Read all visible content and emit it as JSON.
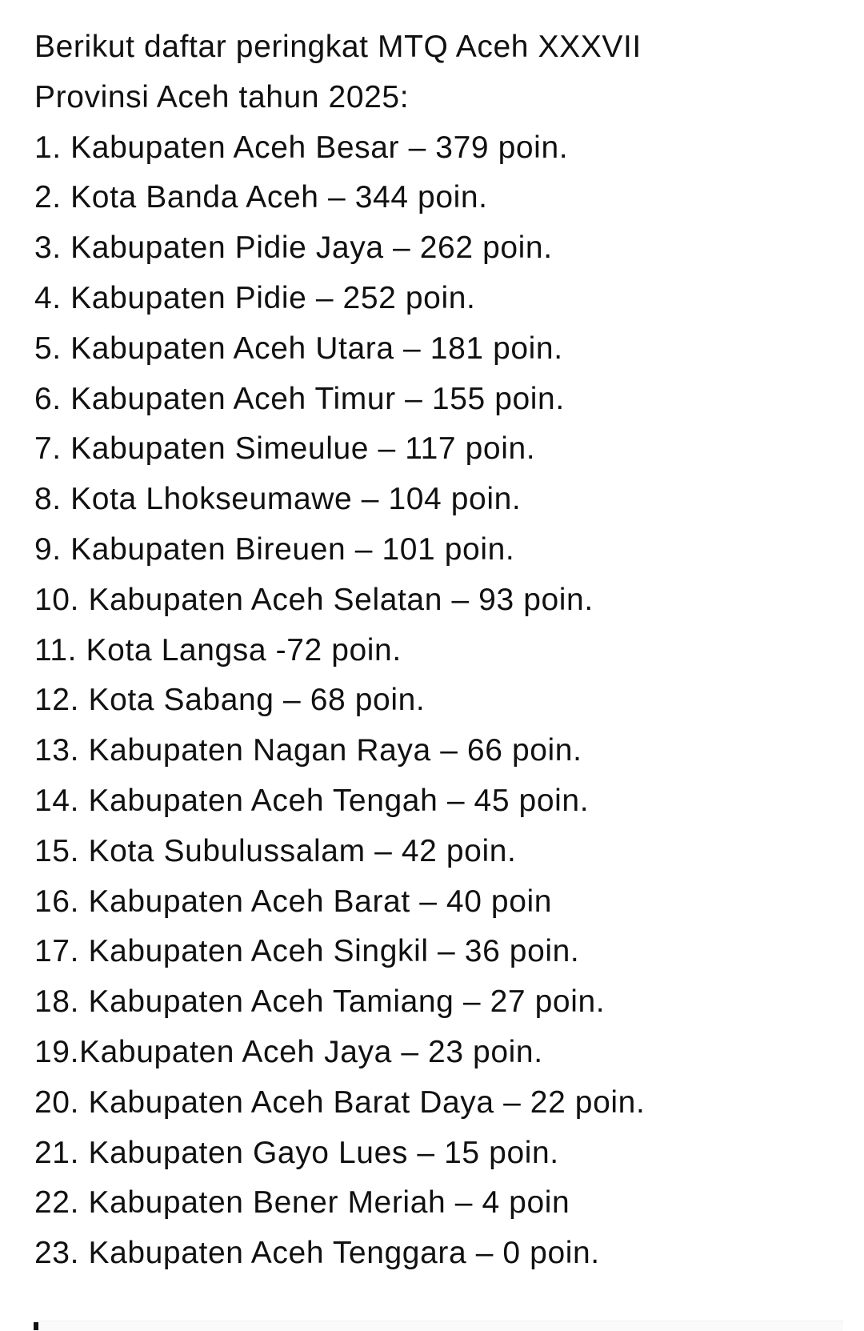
{
  "intro": [
    "Berikut daftar peringkat MTQ Aceh XXXVII",
    "Provinsi Aceh tahun 2025:"
  ],
  "rankings": [
    "1. Kabupaten Aceh Besar – 379 poin.",
    "2. Kota Banda Aceh – 344 poin.",
    "3. Kabupaten Pidie Jaya – 262 poin.",
    "4. Kabupaten Pidie – 252 poin.",
    "5. Kabupaten Aceh Utara – 181 poin.",
    "6. Kabupaten Aceh Timur – 155 poin.",
    "7. Kabupaten Simeulue – 117 poin.",
    "8. Kota Lhokseumawe – 104 poin.",
    "9. Kabupaten Bireuen – 101 poin.",
    "10. Kabupaten Aceh Selatan – 93 poin.",
    "11. Kota Langsa -72 poin.",
    "12. Kota Sabang – 68 poin.",
    "13. Kabupaten Nagan Raya – 66 poin.",
    "14. Kabupaten Aceh Tengah – 45 poin.",
    "15. Kota Subulussalam – 42 poin.",
    "16. Kabupaten Aceh Barat – 40 poin",
    "17. Kabupaten Aceh Singkil – 36 poin.",
    "18. Kabupaten Aceh Tamiang – 27 poin.",
    "19.Kabupaten Aceh Jaya – 23 poin.",
    "20. Kabupaten Aceh Barat Daya – 22 poin.",
    "21. Kabupaten Gayo Lues – 15 poin.",
    "22. Kabupaten Bener Meriah – 4 poin",
    "23. Kabupaten Aceh Tenggara – 0 poin."
  ]
}
